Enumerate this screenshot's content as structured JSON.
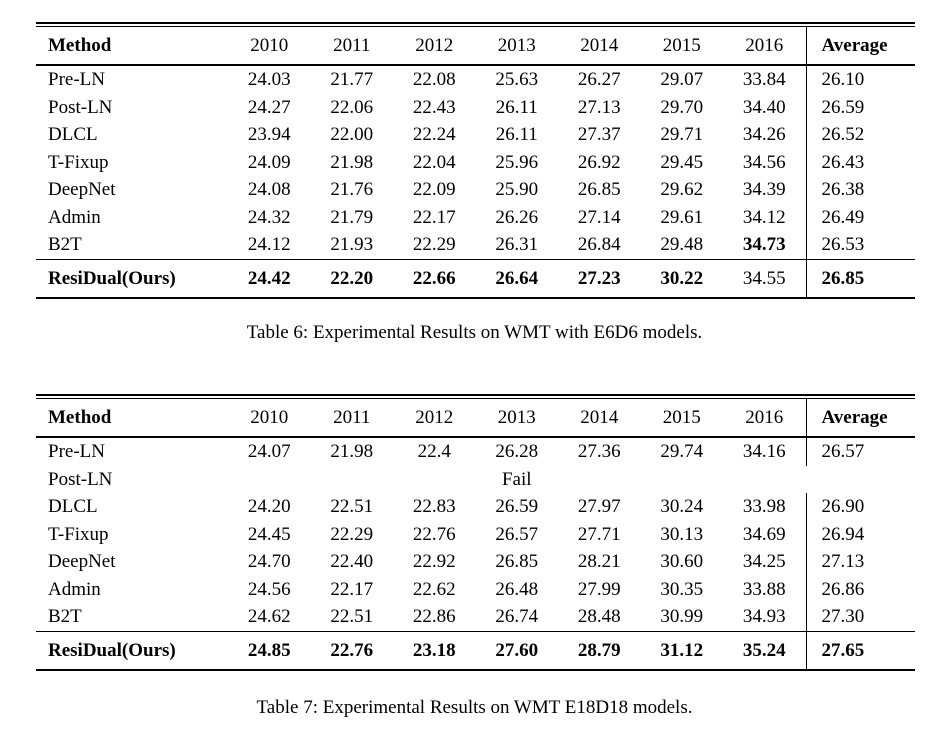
{
  "document": {
    "background": "#ffffff",
    "text_color": "#000000",
    "rule_color": "#000000"
  },
  "tables": [
    {
      "name": "wmt-e6d6-results",
      "caption": "Table 6: Experimental Results on WMT with E6D6 models.",
      "columns": [
        "Method",
        "2010",
        "2011",
        "2012",
        "2013",
        "2014",
        "2015",
        "2016",
        "Average"
      ],
      "rows": [
        {
          "method": "Pre-LN",
          "values": [
            "24.03",
            "21.77",
            "22.08",
            "25.63",
            "26.27",
            "29.07",
            "33.84",
            "26.10"
          ],
          "bold": []
        },
        {
          "method": "Post-LN",
          "values": [
            "24.27",
            "22.06",
            "22.43",
            "26.11",
            "27.13",
            "29.70",
            "34.40",
            "26.59"
          ],
          "bold": []
        },
        {
          "method": "DLCL",
          "values": [
            "23.94",
            "22.00",
            "22.24",
            "26.11",
            "27.37",
            "29.71",
            "34.26",
            "26.52"
          ],
          "bold": []
        },
        {
          "method": "T-Fixup",
          "values": [
            "24.09",
            "21.98",
            "22.04",
            "25.96",
            "26.92",
            "29.45",
            "34.56",
            "26.43"
          ],
          "bold": []
        },
        {
          "method": "DeepNet",
          "values": [
            "24.08",
            "21.76",
            "22.09",
            "25.90",
            "26.85",
            "29.62",
            "34.39",
            "26.38"
          ],
          "bold": []
        },
        {
          "method": "Admin",
          "values": [
            "24.32",
            "21.79",
            "22.17",
            "26.26",
            "27.14",
            "29.61",
            "34.12",
            "26.49"
          ],
          "bold": []
        },
        {
          "method": "B2T",
          "values": [
            "24.12",
            "21.93",
            "22.29",
            "26.31",
            "26.84",
            "29.48",
            "34.73",
            "26.53"
          ],
          "bold": [
            6
          ]
        }
      ],
      "final_row": {
        "method": "ResiDual(Ours)",
        "values": [
          "24.42",
          "22.20",
          "22.66",
          "26.64",
          "27.23",
          "30.22",
          "34.55",
          "26.85"
        ],
        "bold": [
          0,
          1,
          2,
          3,
          4,
          5,
          7
        ]
      }
    },
    {
      "name": "wmt-e18d18-results",
      "caption": "Table 7: Experimental Results on WMT E18D18 models.",
      "columns": [
        "Method",
        "2010",
        "2011",
        "2012",
        "2013",
        "2014",
        "2015",
        "2016",
        "Average"
      ],
      "rows": [
        {
          "method": "Pre-LN",
          "values": [
            "24.07",
            "21.98",
            "22.4",
            "26.28",
            "27.36",
            "29.74",
            "34.16",
            "26.57"
          ],
          "bold": []
        },
        {
          "method": "Post-LN",
          "values": [
            "",
            "",
            "",
            "Fail",
            "",
            "",
            "",
            ""
          ],
          "bold": [],
          "no_separator": true
        },
        {
          "method": "DLCL",
          "values": [
            "24.20",
            "22.51",
            "22.83",
            "26.59",
            "27.97",
            "30.24",
            "33.98",
            "26.90"
          ],
          "bold": []
        },
        {
          "method": "T-Fixup",
          "values": [
            "24.45",
            "22.29",
            "22.76",
            "26.57",
            "27.71",
            "30.13",
            "34.69",
            "26.94"
          ],
          "bold": []
        },
        {
          "method": "DeepNet",
          "values": [
            "24.70",
            "22.40",
            "22.92",
            "26.85",
            "28.21",
            "30.60",
            "34.25",
            "27.13"
          ],
          "bold": []
        },
        {
          "method": "Admin",
          "values": [
            "24.56",
            "22.17",
            "22.62",
            "26.48",
            "27.99",
            "30.35",
            "33.88",
            "26.86"
          ],
          "bold": []
        },
        {
          "method": "B2T",
          "values": [
            "24.62",
            "22.51",
            "22.86",
            "26.74",
            "28.48",
            "30.99",
            "34.93",
            "27.30"
          ],
          "bold": []
        }
      ],
      "final_row": {
        "method": "ResiDual(Ours)",
        "values": [
          "24.85",
          "22.76",
          "23.18",
          "27.60",
          "28.79",
          "31.12",
          "35.24",
          "27.65"
        ],
        "bold": [
          0,
          1,
          2,
          3,
          4,
          5,
          6,
          7
        ]
      }
    }
  ]
}
